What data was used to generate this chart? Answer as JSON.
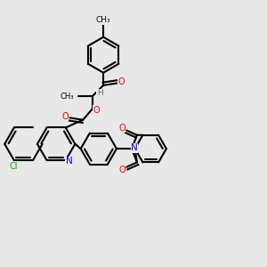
{
  "bg_color": "#e8e8e8",
  "bond_color": "#000000",
  "bond_width": 1.5,
  "atom_colors": {
    "O": "#ff0000",
    "N": "#0000cd",
    "Cl": "#00aa00",
    "H": "#606060",
    "C": "#000000"
  },
  "figsize": [
    3.0,
    3.0
  ]
}
